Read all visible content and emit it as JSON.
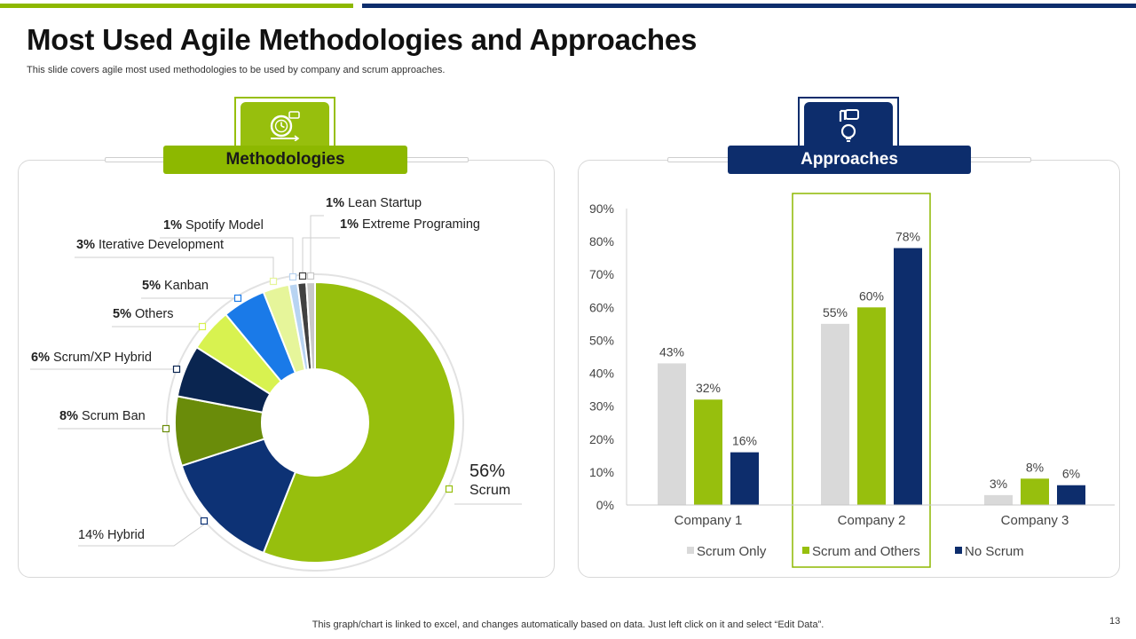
{
  "slide": {
    "title": "Most Used Agile Methodologies and Approaches",
    "subtitle": "This slide covers agile most used methodologies to be used by company and scrum approaches.",
    "footnote": "This graph/chart is linked to excel,  and changes automatically based on data. Just left click on it and select “Edit Data”.",
    "page_number": "13"
  },
  "colors": {
    "green": "#97bf0d",
    "navy": "#0d2d6c",
    "gray": "#d9d9d9"
  },
  "left_section": {
    "label": "Methodologies",
    "icon": "time-management-icon"
  },
  "right_section": {
    "label": "Approaches",
    "icon": "idea-hand-icon"
  },
  "chart_data": [
    {
      "type": "pie",
      "title": "Methodologies",
      "unit": "%",
      "slices": [
        {
          "label": "Scrum",
          "value": 56,
          "color": "#97bf0d"
        },
        {
          "label": "Hybrid",
          "value": 14,
          "color": "#0d3275"
        },
        {
          "label": "Scrum Ban",
          "value": 8,
          "color": "#6a8c0a"
        },
        {
          "label": "Scrum/XP Hybrid",
          "value": 6,
          "color": "#0a2550"
        },
        {
          "label": "Others",
          "value": 5,
          "color": "#d8f250"
        },
        {
          "label": "Kanban",
          "value": 5,
          "color": "#1a7ae8"
        },
        {
          "label": "Iterative  Development",
          "value": 3,
          "color": "#e6f59a"
        },
        {
          "label": "Spotify Model",
          "value": 1,
          "color": "#b8d4f2"
        },
        {
          "label": "Extreme Programing",
          "value": 1,
          "color": "#404040"
        },
        {
          "label": "Lean Startup",
          "value": 1,
          "color": "#c8c8c8"
        }
      ]
    },
    {
      "type": "bar",
      "title": "Approaches",
      "categories": [
        "Company 1",
        "Company 2",
        "Company 3"
      ],
      "series": [
        {
          "name": "Scrum Only",
          "values": [
            43,
            55,
            3
          ],
          "color": "#d9d9d9"
        },
        {
          "name": "Scrum and Others",
          "values": [
            32,
            60,
            8
          ],
          "color": "#97bf0d"
        },
        {
          "name": "No Scrum",
          "values": [
            16,
            78,
            6
          ],
          "color": "#0d2d6c"
        }
      ],
      "ylim": [
        0,
        90
      ],
      "yticks": [
        "0%",
        "10%",
        "20%",
        "30%",
        "40%",
        "50%",
        "60%",
        "70%",
        "80%",
        "90%"
      ],
      "highlighted_category": "Company 2",
      "legend_position": "bottom"
    }
  ]
}
